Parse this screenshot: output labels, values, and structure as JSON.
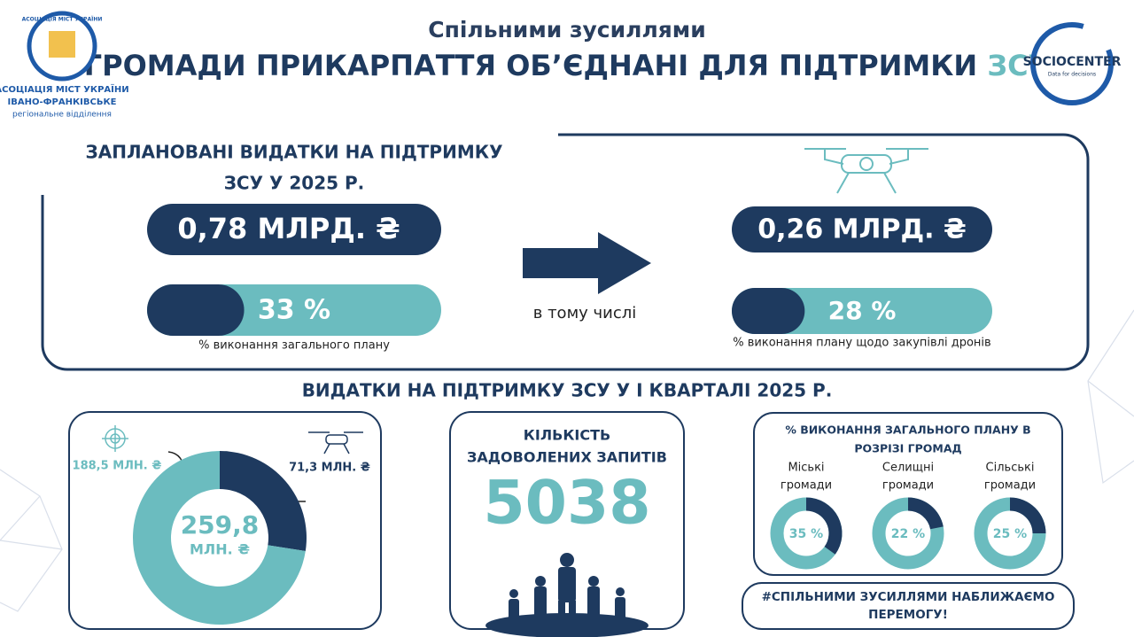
{
  "header": {
    "subtitle": "Спільними зусиллями",
    "title": "ГРОМАДИ ПРИКАРПАТТЯ ОБ’ЄДНАНІ ДЛЯ ПІДТРИМКИ",
    "title_highlight": "ЗСУ"
  },
  "logo_left": {
    "ring": "АСОЦІАЦІЯ МІСТ УКРАЇНИ",
    "lines": [
      "АСОЦІАЦІЯ МІСТ УКРАЇНИ",
      "ІВАНО-ФРАНКІВСЬКЕ",
      "регіональне відділення"
    ]
  },
  "logo_right": {
    "name": "SOCIOCENTER",
    "tagline": "Data for decisions"
  },
  "planned": {
    "heading": [
      "ЗАПЛАНОВАНІ ВИДАТКИ НА ПІДТРИМКУ",
      "ЗСУ У 2025 Р."
    ],
    "total": "0,78 МЛРД. ₴",
    "progress": 33,
    "progress_label": "33 %",
    "caption": "% виконання загального плану",
    "connector": "в тому числі",
    "drones_total": "0,26 МЛРД. ₴",
    "drones_progress": 28,
    "drones_progress_label": "28 %",
    "drones_caption": "% виконання плану щодо закупівлі дронів"
  },
  "q1": {
    "heading": "ВИДАТКИ НА ПІДТРИМКУ ЗСУ У І КВАРТАЛІ 2025 Р.",
    "donut": {
      "total": 259.8,
      "total_label": "259,8",
      "unit": "МЛН. ₴",
      "segments": [
        {
          "value": 188.5,
          "label": "188,5 МЛН. ₴",
          "color": "#6bbcbf"
        },
        {
          "value": 71.3,
          "label": "71,3 МЛН. ₴",
          "color": "#1e3a5f"
        }
      ]
    },
    "requests": {
      "heading": [
        "КІЛЬКІСТЬ",
        "ЗАДОВОЛЕНИХ ЗАПИТІВ"
      ],
      "value": 5038
    },
    "communities": {
      "heading": [
        "% ВИКОНАННЯ ЗАГАЛЬНОГО ПЛАНУ В",
        "РОЗРІЗІ ГРОМАД"
      ],
      "items": [
        {
          "name": [
            "Міські",
            "громади"
          ],
          "value": 35,
          "label": "35 %"
        },
        {
          "name": [
            "Селищні",
            "громади"
          ],
          "value": 22,
          "label": "22 %"
        },
        {
          "name": [
            "Сільські",
            "громади"
          ],
          "value": 25,
          "label": "25 %"
        }
      ]
    },
    "hashtag": [
      "#СПІЛЬНИМИ ЗУСИЛЛЯМИ НАБЛИЖАЄМО",
      "ПЕРЕМОГУ!"
    ]
  }
}
